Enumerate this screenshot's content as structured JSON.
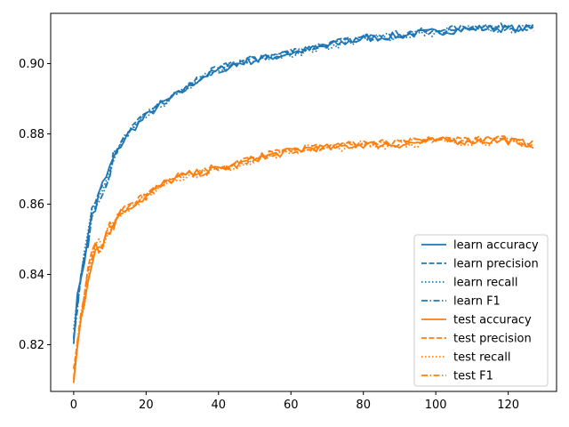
{
  "chart_data": {
    "type": "line",
    "title": "",
    "xlabel": "",
    "ylabel": "",
    "xlim": [
      -6.35,
      133.35
    ],
    "ylim": [
      0.8067,
      0.9143
    ],
    "xticks": [
      0,
      20,
      40,
      60,
      80,
      100,
      120
    ],
    "yticks": [
      0.82,
      0.84,
      0.86,
      0.88,
      0.9
    ],
    "ytick_format": 2,
    "grid": false,
    "legend_position": "lower-right",
    "colors": {
      "learn": "#1f77b4",
      "test": "#ff7f0e"
    },
    "learn_accuracy_key_points": [
      [
        0,
        0.823
      ],
      [
        1,
        0.832
      ],
      [
        2,
        0.84
      ],
      [
        3,
        0.845
      ],
      [
        4,
        0.85
      ],
      [
        5,
        0.857
      ],
      [
        6,
        0.859
      ],
      [
        8,
        0.865
      ],
      [
        10,
        0.87
      ],
      [
        12,
        0.875
      ],
      [
        15,
        0.88
      ],
      [
        20,
        0.885
      ],
      [
        25,
        0.889
      ],
      [
        30,
        0.892
      ],
      [
        35,
        0.896
      ],
      [
        40,
        0.898
      ],
      [
        45,
        0.9
      ],
      [
        50,
        0.901
      ],
      [
        55,
        0.902
      ],
      [
        60,
        0.903
      ],
      [
        65,
        0.904
      ],
      [
        70,
        0.905
      ],
      [
        80,
        0.907
      ],
      [
        90,
        0.908
      ],
      [
        100,
        0.909
      ],
      [
        110,
        0.91
      ],
      [
        120,
        0.91
      ],
      [
        127,
        0.91
      ]
    ],
    "test_accuracy_key_points": [
      [
        0,
        0.81
      ],
      [
        1,
        0.82
      ],
      [
        2,
        0.828
      ],
      [
        3,
        0.834
      ],
      [
        4,
        0.84
      ],
      [
        5,
        0.845
      ],
      [
        6,
        0.847
      ],
      [
        8,
        0.85
      ],
      [
        10,
        0.852
      ],
      [
        12,
        0.857
      ],
      [
        15,
        0.859
      ],
      [
        20,
        0.862
      ],
      [
        25,
        0.866
      ],
      [
        30,
        0.868
      ],
      [
        35,
        0.869
      ],
      [
        40,
        0.87
      ],
      [
        45,
        0.871
      ],
      [
        50,
        0.873
      ],
      [
        55,
        0.874
      ],
      [
        60,
        0.875
      ],
      [
        65,
        0.876
      ],
      [
        70,
        0.876
      ],
      [
        80,
        0.877
      ],
      [
        90,
        0.877
      ],
      [
        100,
        0.878
      ],
      [
        110,
        0.878
      ],
      [
        120,
        0.878
      ],
      [
        127,
        0.877
      ]
    ],
    "series": [
      {
        "name": "learn accuracy",
        "group": "learn",
        "dash": "solid"
      },
      {
        "name": "learn precision",
        "group": "learn",
        "dash": "dashed"
      },
      {
        "name": "learn recall",
        "group": "learn",
        "dash": "dotted"
      },
      {
        "name": "learn F1",
        "group": "learn",
        "dash": "dashdot"
      },
      {
        "name": "test accuracy",
        "group": "test",
        "dash": "solid"
      },
      {
        "name": "test precision",
        "group": "test",
        "dash": "dashed"
      },
      {
        "name": "test recall",
        "group": "test",
        "dash": "dotted"
      },
      {
        "name": "test F1",
        "group": "test",
        "dash": "dashdot"
      }
    ]
  }
}
